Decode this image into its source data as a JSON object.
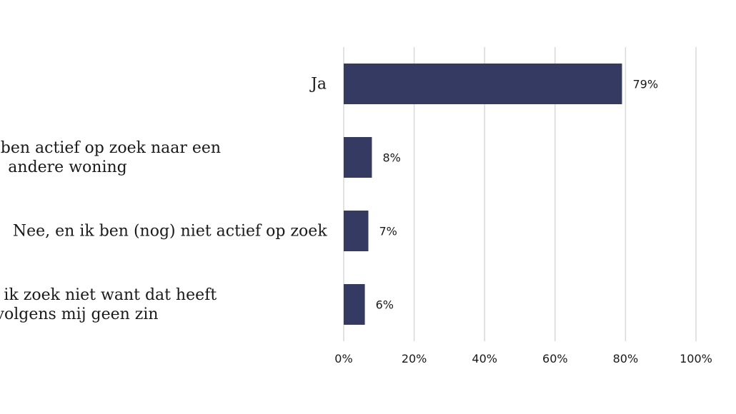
{
  "chart_data": {
    "type": "bar",
    "orientation": "horizontal",
    "categories": [
      [
        "Ja"
      ],
      [
        "Nee, en ik ben actief op zoek naar een",
        "andere woning"
      ],
      [
        "Nee, en ik ben (nog) niet actief op zoek"
      ],
      [
        "Nee, en ik zoek niet want dat heeft",
        "volgens mij geen zin"
      ]
    ],
    "values": [
      79,
      8,
      7,
      6
    ],
    "data_labels": [
      "79%",
      "8%",
      "7%",
      "6%"
    ],
    "xlim": [
      0,
      100
    ],
    "x_ticks": [
      0,
      20,
      40,
      60,
      80,
      100
    ],
    "x_tick_labels": [
      "0%",
      "20%",
      "40%",
      "60%",
      "80%",
      "100%"
    ],
    "xlabel": "",
    "ylabel": "",
    "grid": true,
    "legend": "none",
    "colors": {
      "bar": "#353a63",
      "grid": "#d9d9d9",
      "text": "#1a1a1a"
    }
  }
}
